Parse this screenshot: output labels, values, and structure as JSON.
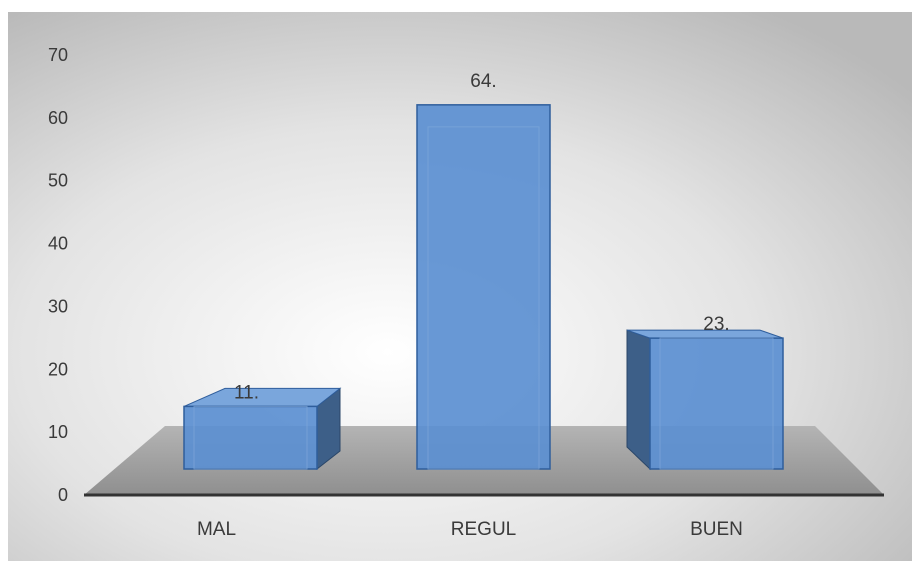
{
  "chart_data": {
    "type": "bar",
    "categories": [
      "MAL",
      "REGUL",
      "BUEN"
    ],
    "values": [
      11,
      64,
      23
    ],
    "data_labels": [
      "11.",
      "64.",
      "23."
    ],
    "y_ticks": [
      "0",
      "10",
      "20",
      "30",
      "40",
      "50",
      "60",
      "70"
    ],
    "ylim": [
      0,
      70
    ],
    "grid": false,
    "legend": "none",
    "style": "3d-column",
    "colors": {
      "bar_front": "#5b8fd1",
      "bar_side": "#3d5f88",
      "bar_top": "#7aa6dc",
      "bar_outline": "#2f5e9c",
      "floor": "#9c9c9c",
      "axis": "#3a3a3a"
    }
  }
}
